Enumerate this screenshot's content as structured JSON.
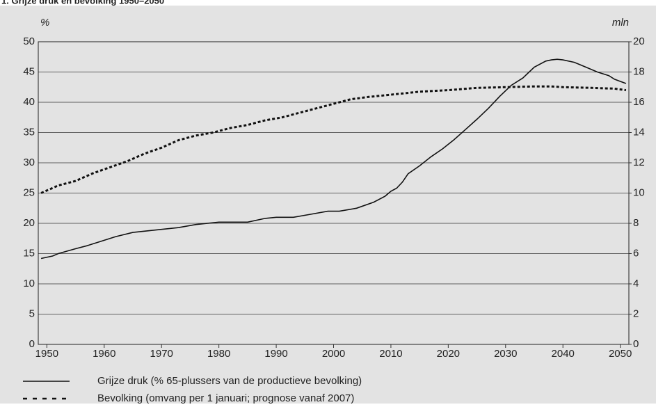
{
  "chart_data": {
    "type": "line",
    "title": "1. Grijze druk en bevolking 1950–2050",
    "y_label": "%",
    "y2_label": "mln",
    "xlim": [
      1948.5,
      2051.5
    ],
    "xticks": [
      1950,
      1960,
      1970,
      1980,
      1990,
      2000,
      2010,
      2020,
      2030,
      2040,
      2050
    ],
    "ylim": [
      0,
      50
    ],
    "yticks": [
      0,
      5,
      10,
      15,
      20,
      25,
      30,
      35,
      40,
      45,
      50
    ],
    "y2lim": [
      0,
      20
    ],
    "y2ticks": [
      0,
      2,
      4,
      6,
      8,
      10,
      12,
      14,
      16,
      18,
      20
    ],
    "grid": true,
    "series": [
      {
        "name": "Grijze druk (% 65-plussers van de productieve bevolking)",
        "color": "#111111",
        "style": "solid",
        "x": [
          1949,
          1951,
          1952,
          1955,
          1957,
          1959,
          1962,
          1965,
          1968,
          1970,
          1973,
          1976,
          1980,
          1985,
          1988,
          1990,
          1993,
          1996,
          1999,
          2001,
          2004,
          2007,
          2009,
          2010,
          2011,
          2012,
          2013,
          2015,
          2017,
          2019,
          2021,
          2023,
          2025,
          2027,
          2029,
          2031,
          2033,
          2035,
          2037,
          2038,
          2039,
          2040,
          2042,
          2044,
          2046,
          2048,
          2049,
          2051
        ],
        "values": [
          14.2,
          14.6,
          15.0,
          15.8,
          16.3,
          16.9,
          17.8,
          18.5,
          18.8,
          19.0,
          19.3,
          19.8,
          20.2,
          20.2,
          20.8,
          21.0,
          21.0,
          21.5,
          22.0,
          22.0,
          22.5,
          23.5,
          24.5,
          25.3,
          25.8,
          26.8,
          28.2,
          29.5,
          31.0,
          32.3,
          33.8,
          35.5,
          37.2,
          39.0,
          41.0,
          42.8,
          44.0,
          45.8,
          46.8,
          47.0,
          47.1,
          47.0,
          46.6,
          45.8,
          45.0,
          44.4,
          43.8,
          43.1
        ]
      },
      {
        "name": "Bevolking (omvang per 1 januari; prognose vanaf 2007)",
        "color": "#111111",
        "style": "dotted",
        "axis": "y2",
        "x": [
          1949,
          1952,
          1955,
          1958,
          1961,
          1964,
          1967,
          1970,
          1973,
          1976,
          1979,
          1982,
          1985,
          1988,
          1991,
          1994,
          1997,
          2000,
          2003,
          2006,
          2010,
          2015,
          2020,
          2025,
          2030,
          2035,
          2038,
          2040,
          2045,
          2049,
          2051
        ],
        "values": [
          10.0,
          10.5,
          10.8,
          11.3,
          11.7,
          12.1,
          12.6,
          13.0,
          13.5,
          13.8,
          14.0,
          14.3,
          14.5,
          14.8,
          15.0,
          15.3,
          15.6,
          15.9,
          16.2,
          16.35,
          16.5,
          16.7,
          16.8,
          16.95,
          17.0,
          17.05,
          17.05,
          17.0,
          16.95,
          16.9,
          16.8
        ]
      }
    ]
  }
}
